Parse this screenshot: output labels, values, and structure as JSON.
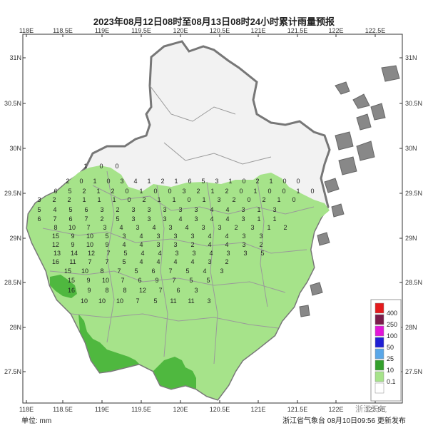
{
  "title": "2023年08月12日08时至08月13日08时24小时累计雨量预报",
  "unit_label": "单位: mm",
  "issuer": "浙江省气象台  08月10日09:56 更新发布",
  "watermark": "浙江天气",
  "lon_ticks": [
    "118E",
    "118.5E",
    "119E",
    "119.5E",
    "120E",
    "120.5E",
    "121E",
    "121.5E",
    "122E",
    "122.5E"
  ],
  "lat_ticks": [
    "31N",
    "30.5N",
    "30N",
    "29.5N",
    "29N",
    "28.5N",
    "28N",
    "27.5N"
  ],
  "legend": [
    {
      "label": "400",
      "color": "#e41a1c"
    },
    {
      "label": "250",
      "color": "#7b1c4b"
    },
    {
      "label": "100",
      "color": "#e316d8"
    },
    {
      "label": "50",
      "color": "#1f1fd4"
    },
    {
      "label": "25",
      "color": "#5aa7e8"
    },
    {
      "label": "10",
      "color": "#33a02c"
    },
    {
      "label": "0.1",
      "color": "#a6e38a"
    },
    {
      "label": "",
      "color": "#ffffff"
    }
  ],
  "colors": {
    "light_rain": "#a6e38a",
    "moderate_rain": "#4fb83f",
    "province_fill": "#f2f2f2",
    "border": "#777777"
  },
  "rain_values": [
    "1",
    "0",
    "0",
    "2",
    "0",
    "1",
    "0",
    "3",
    "4",
    "1",
    "2",
    "1",
    "6",
    "5",
    "3",
    "1",
    "0",
    "2",
    "1",
    "0",
    "0",
    "6",
    "5",
    "2",
    "1",
    "2",
    "0",
    "1",
    "0",
    "0",
    "3",
    "2",
    "1",
    "2",
    "0",
    "1",
    "0",
    "0",
    "1",
    "0",
    "3",
    "2",
    "2",
    "1",
    "1",
    "1",
    "0",
    "2",
    "1",
    "1",
    "0",
    "1",
    "3",
    "2",
    "0",
    "2",
    "1",
    "0",
    "5",
    "4",
    "5",
    "6",
    "3",
    "2",
    "3",
    "3",
    "3",
    "3",
    "3",
    "4",
    "4",
    "3",
    "1",
    "3",
    "6",
    "7",
    "6",
    "7",
    "2",
    "5",
    "3",
    "3",
    "3",
    "4",
    "3",
    "4",
    "4",
    "3",
    "1",
    "1",
    "8",
    "10",
    "7",
    "3",
    "4",
    "3",
    "4",
    "3",
    "4",
    "3",
    "3",
    "2",
    "3",
    "1",
    "2",
    "15",
    "9",
    "10",
    "5",
    "3",
    "4",
    "3",
    "3",
    "3",
    "4",
    "4",
    "3",
    "3",
    "12",
    "9",
    "10",
    "9",
    "4",
    "4",
    "3",
    "3",
    "2",
    "4",
    "4",
    "3",
    "2",
    "13",
    "14",
    "12",
    "7",
    "5",
    "4",
    "4",
    "3",
    "3",
    "4",
    "3",
    "3",
    "5",
    "16",
    "11",
    "7",
    "7",
    "5",
    "4",
    "4",
    "4",
    "4",
    "3",
    "2",
    "15",
    "10",
    "8",
    "7",
    "5",
    "6",
    "7",
    "5",
    "4",
    "3",
    "15",
    "9",
    "10",
    "7",
    "6",
    "9",
    "7",
    "5",
    "5",
    "16",
    "9",
    "8",
    "8",
    "12",
    "7",
    "6",
    "3",
    "10",
    "10",
    "10",
    "7",
    "5",
    "11",
    "11",
    "3"
  ]
}
